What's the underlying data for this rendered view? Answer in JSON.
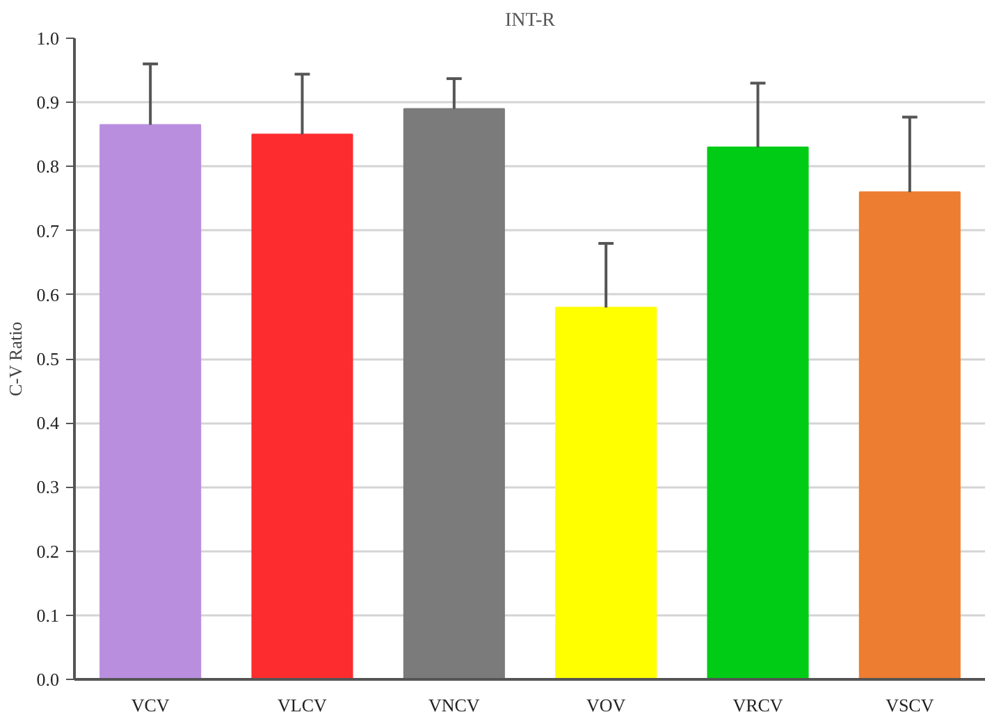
{
  "chart_data": {
    "type": "bar",
    "title": "INT-R",
    "ylabel": "C-V Ratio",
    "categories": [
      "VCV",
      "VLCV",
      "VNCV",
      "VOV",
      "VRCV",
      "VSCV"
    ],
    "values": [
      0.865,
      0.85,
      0.89,
      0.58,
      0.83,
      0.76
    ],
    "colors": [
      "#b98ede",
      "#fd2c2f",
      "#7b7b7b",
      "#ffff00",
      "#00cc16",
      "#ed7d31"
    ],
    "errors": [
      [
        0.865,
        0.96
      ],
      [
        0.85,
        0.944
      ],
      [
        0.89,
        0.937
      ],
      [
        0.58,
        0.68
      ],
      [
        0.83,
        0.93
      ],
      [
        0.76,
        0.877
      ]
    ],
    "ylim": [
      0,
      1
    ],
    "yticks": [
      {
        "value": 0,
        "label": "0.0"
      },
      0.1,
      0.2,
      0.3,
      0.4,
      0.5,
      0.6,
      0.7,
      0.8,
      0.9,
      {
        "value": 1,
        "label": "1.0"
      }
    ],
    "grid": "y"
  }
}
